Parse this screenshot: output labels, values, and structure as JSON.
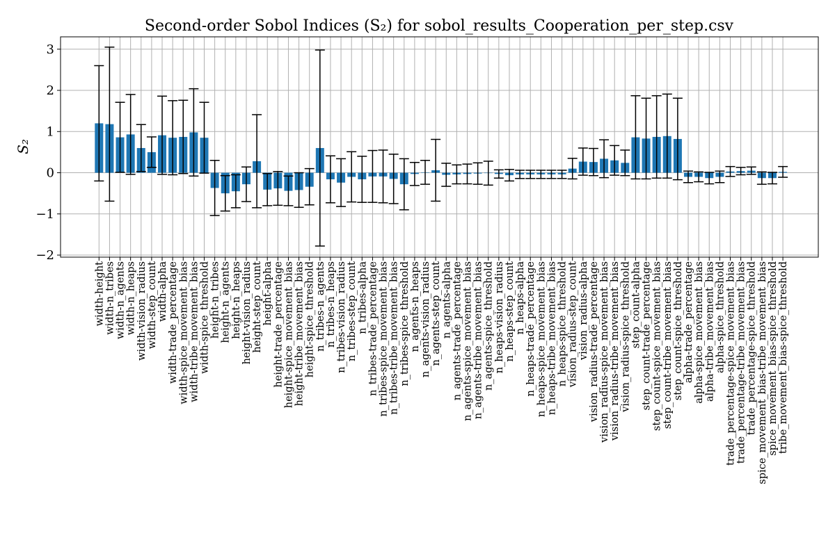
{
  "chart_data": {
    "type": "bar",
    "title": "Second-order Sobol Indices (S₂) for sobol_results_Cooperation_per_step.csv",
    "xlabel": "",
    "ylabel": "S₂",
    "ylim": [
      -2.05,
      3.3
    ],
    "yticks": [
      -2,
      -1,
      0,
      1,
      2,
      3
    ],
    "ytick_labels": [
      "−2",
      "−1",
      "0",
      "1",
      "2",
      "3"
    ],
    "grid": true,
    "error_bars": true,
    "bar_color": "#1f77b4",
    "categories": [
      "width-height",
      "width-n_tribes",
      "width-n_agents",
      "width-n_heaps",
      "width-vision_radius",
      "width-step_count",
      "width-alpha",
      "width-trade_percentage",
      "width-spice_movement_bias",
      "width-tribe_movement_bias",
      "width-spice_threshold",
      "height-n_tribes",
      "height-n_agents",
      "height-n_heaps",
      "height-vision_radius",
      "height-step_count",
      "height-alpha",
      "height-trade_percentage",
      "height-spice_movement_bias",
      "height-tribe_movement_bias",
      "height-spice_threshold",
      "n_tribes-n_agents",
      "n_tribes-n_heaps",
      "n_tribes-vision_radius",
      "n_tribes-step_count",
      "n_tribes-alpha",
      "n_tribes-trade_percentage",
      "n_tribes-spice_movement_bias",
      "n_tribes-tribe_movement_bias",
      "n_tribes-spice_threshold",
      "n_agents-n_heaps",
      "n_agents-vision_radius",
      "n_agents-step_count",
      "n_agents-alpha",
      "n_agents-trade_percentage",
      "n_agents-spice_movement_bias",
      "n_agents-tribe_movement_bias",
      "n_agents-spice_threshold",
      "n_heaps-vision_radius",
      "n_heaps-step_count",
      "n_heaps-alpha",
      "n_heaps-trade_percentage",
      "n_heaps-spice_movement_bias",
      "n_heaps-tribe_movement_bias",
      "n_heaps-spice_threshold",
      "vision_radius-step_count",
      "vision_radius-alpha",
      "vision_radius-trade_percentage",
      "vision_radius-spice_movement_bias",
      "vision_radius-tribe_movement_bias",
      "vision_radius-spice_threshold",
      "step_count-alpha",
      "step_count-trade_percentage",
      "step_count-spice_movement_bias",
      "step_count-tribe_movement_bias",
      "step_count-spice_threshold",
      "alpha-trade_percentage",
      "alpha-spice_movement_bias",
      "alpha-tribe_movement_bias",
      "alpha-spice_threshold",
      "trade_percentage-spice_movement_bias",
      "trade_percentage-tribe_movement_bias",
      "trade_percentage-spice_threshold",
      "spice_movement_bias-tribe_movement_bias",
      "spice_movement_bias-spice_threshold",
      "tribe_movement_bias-spice_threshold"
    ],
    "values": [
      1.2,
      1.18,
      0.86,
      0.93,
      0.6,
      0.5,
      0.91,
      0.85,
      0.87,
      0.98,
      0.85,
      -0.37,
      -0.5,
      -0.45,
      -0.28,
      0.28,
      -0.41,
      -0.38,
      -0.44,
      -0.42,
      -0.34,
      0.6,
      -0.16,
      -0.24,
      -0.1,
      -0.16,
      -0.09,
      -0.09,
      -0.15,
      -0.28,
      -0.03,
      0.01,
      0.06,
      -0.05,
      -0.04,
      -0.03,
      -0.02,
      -0.01,
      -0.03,
      -0.06,
      -0.04,
      -0.04,
      -0.04,
      -0.04,
      -0.04,
      0.1,
      0.27,
      0.26,
      0.34,
      0.3,
      0.24,
      0.86,
      0.83,
      0.87,
      0.89,
      0.82,
      -0.1,
      -0.1,
      -0.13,
      -0.1,
      0.03,
      0.04,
      0.05,
      -0.13,
      -0.13,
      0.02
    ],
    "errors": [
      1.4,
      1.87,
      0.85,
      0.97,
      0.57,
      0.37,
      0.95,
      0.9,
      0.89,
      1.06,
      0.86,
      0.67,
      0.43,
      0.4,
      0.42,
      1.13,
      0.39,
      0.41,
      0.36,
      0.42,
      0.44,
      2.38,
      0.57,
      0.58,
      0.61,
      0.56,
      0.63,
      0.64,
      0.6,
      0.62,
      0.28,
      0.29,
      0.75,
      0.28,
      0.23,
      0.24,
      0.26,
      0.29,
      0.1,
      0.14,
      0.1,
      0.1,
      0.1,
      0.1,
      0.1,
      0.25,
      0.33,
      0.33,
      0.46,
      0.36,
      0.31,
      1.01,
      0.98,
      1.0,
      1.02,
      0.99,
      0.14,
      0.12,
      0.14,
      0.14,
      0.12,
      0.09,
      0.09,
      0.15,
      0.14,
      0.13
    ]
  }
}
